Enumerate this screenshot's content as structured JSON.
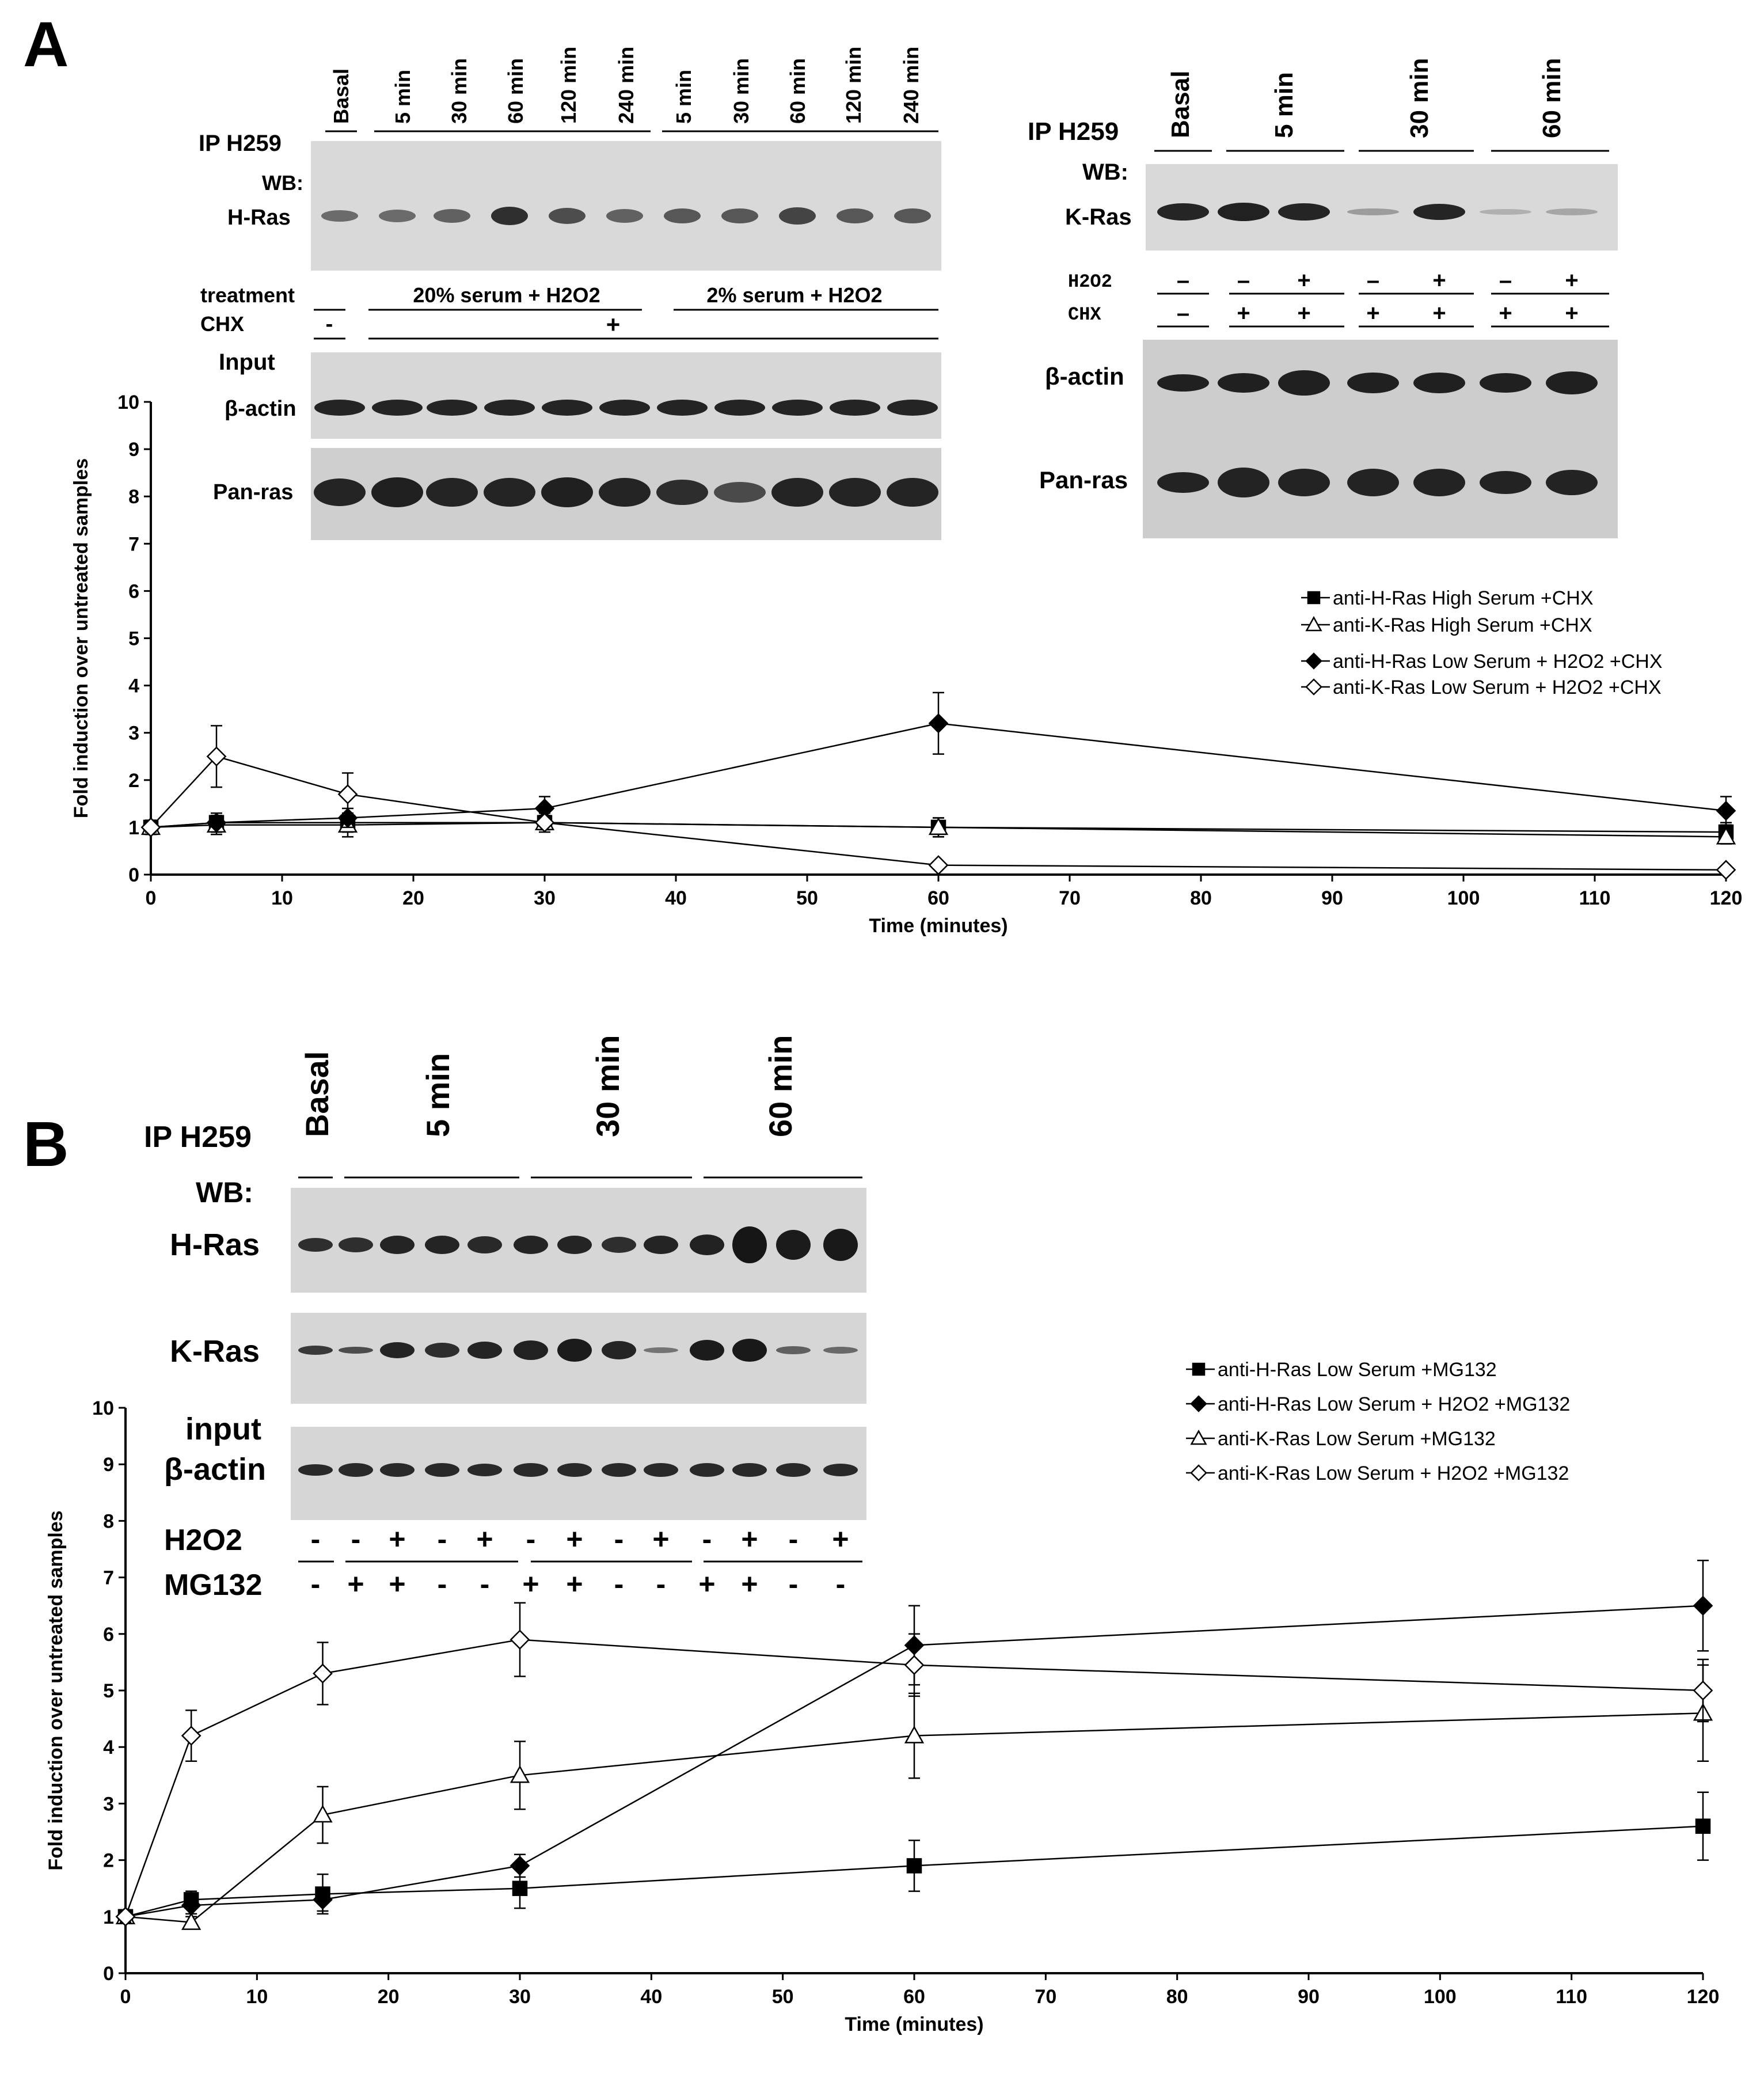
{
  "panel_a": {
    "letter": "A",
    "blot_left": {
      "ip_label": "IP H259",
      "wb_label": "WB:",
      "lanes": [
        "Basal",
        "5 min",
        "30 min",
        "60 min",
        "120 min",
        "240 min",
        "5 min",
        "30 min",
        "60 min",
        "120 min",
        "240 min"
      ],
      "bands": [
        "H-Ras"
      ],
      "treatment_label": "treatment",
      "treatment_groups": [
        "20% serum + H2O2",
        "2% serum + H2O2"
      ],
      "chx_label": "CHX",
      "chx_basal": "-",
      "chx_rest": "+",
      "input_label": "Input",
      "input_bands": [
        "β-actin",
        "Pan-ras"
      ]
    },
    "blot_right": {
      "ip_label": "IP H259",
      "wb_label": "WB:",
      "lanes": [
        "Basal",
        "5 min",
        "30 min",
        "60 min"
      ],
      "bands": [
        "K-Ras"
      ],
      "h2o2_label": "H2O2",
      "h2o2_signs": [
        "–",
        "–",
        "+",
        "–",
        "+",
        "–",
        "+"
      ],
      "chx_label": "CHX",
      "chx_signs": [
        "–",
        "+",
        "+",
        "+",
        "+",
        "+",
        "+"
      ],
      "input_bands": [
        "β-actin",
        "Pan-ras"
      ]
    }
  },
  "panel_b": {
    "letter": "B",
    "blot": {
      "ip_label": "IP H259",
      "wb_label": "WB:",
      "lanes": [
        "Basal",
        "5 min",
        "30 min",
        "60 min"
      ],
      "bands": [
        "H-Ras",
        "K-Ras"
      ],
      "input_label": "input",
      "input_bands": [
        "β-actin"
      ],
      "h2o2_label": "H2O2",
      "h2o2_signs": [
        "-",
        "-",
        "+",
        "-",
        "+",
        "-",
        "+",
        "-",
        "+",
        "-",
        "+",
        "-",
        "+"
      ],
      "mg132_label": "MG132",
      "mg132_signs": [
        "-",
        "+",
        "+",
        "-",
        "-",
        "+",
        "+",
        "-",
        "-",
        "+",
        "+",
        "-",
        "-"
      ]
    }
  },
  "chart_data": [
    {
      "type": "line",
      "panel": "A",
      "xlabel": "Time (minutes)",
      "ylabel": "Fold induction over untreated samples",
      "xlim": [
        0,
        120
      ],
      "ylim": [
        0,
        10
      ],
      "xticks": [
        0,
        10,
        20,
        30,
        40,
        50,
        60,
        70,
        80,
        90,
        100,
        110,
        120
      ],
      "yticks": [
        0,
        1,
        2,
        3,
        4,
        5,
        6,
        7,
        8,
        9,
        10
      ],
      "series": [
        {
          "name": "anti-H-Ras High Serum +CHX",
          "marker": "square-filled",
          "x": [
            0,
            5,
            15,
            30,
            60,
            120
          ],
          "y": [
            1.0,
            1.1,
            1.1,
            1.1,
            1.0,
            0.9
          ],
          "err": [
            0.15,
            0.2,
            0.2,
            0.15,
            0.2,
            0.2
          ]
        },
        {
          "name": "anti-K-Ras High Serum +CHX",
          "marker": "triangle-open",
          "x": [
            0,
            5,
            15,
            30,
            60,
            120
          ],
          "y": [
            1.0,
            1.05,
            1.05,
            1.1,
            1.0,
            0.8
          ],
          "err": [
            0.15,
            0.2,
            0.25,
            0.15,
            0.2,
            0.15
          ]
        },
        {
          "name": "anti-H-Ras Low Serum + H2O2 +CHX",
          "marker": "diamond-filled",
          "x": [
            0,
            5,
            15,
            30,
            60,
            120
          ],
          "y": [
            1.0,
            1.1,
            1.2,
            1.4,
            3.2,
            1.35
          ],
          "err": [
            0.1,
            0.2,
            0.2,
            0.25,
            0.65,
            0.3
          ]
        },
        {
          "name": "anti-K-Ras Low Serum + H2O2 +CHX",
          "marker": "diamond-open",
          "x": [
            0,
            5,
            15,
            30,
            60,
            120
          ],
          "y": [
            1.0,
            2.5,
            1.7,
            1.1,
            0.2,
            0.1
          ],
          "err": [
            0.1,
            0.65,
            0.45,
            0.2,
            0.05,
            0.05
          ]
        }
      ]
    },
    {
      "type": "line",
      "panel": "B",
      "xlabel": "Time (minutes)",
      "ylabel": "Fold induction over untreated samples",
      "xlim": [
        0,
        120
      ],
      "ylim": [
        0,
        10
      ],
      "xticks": [
        0,
        10,
        20,
        30,
        40,
        50,
        60,
        70,
        80,
        90,
        100,
        110,
        120
      ],
      "yticks": [
        0,
        1,
        2,
        3,
        4,
        5,
        6,
        7,
        8,
        9,
        10
      ],
      "series": [
        {
          "name": "anti-H-Ras Low Serum +MG132",
          "marker": "square-filled",
          "x": [
            0,
            5,
            15,
            30,
            60,
            120
          ],
          "y": [
            1.0,
            1.3,
            1.4,
            1.5,
            1.9,
            2.6
          ],
          "err": [
            0.1,
            0.15,
            0.35,
            0.35,
            0.45,
            0.6
          ]
        },
        {
          "name": "anti-H-Ras Low Serum + H2O2 +MG132",
          "marker": "diamond-filled",
          "x": [
            0,
            5,
            15,
            30,
            60,
            120
          ],
          "y": [
            1.0,
            1.2,
            1.3,
            1.9,
            5.8,
            6.5
          ],
          "err": [
            0.1,
            0.15,
            0.2,
            0.2,
            0.7,
            0.8
          ]
        },
        {
          "name": "anti-K-Ras Low Serum +MG132",
          "marker": "triangle-open",
          "x": [
            0,
            5,
            15,
            30,
            60,
            120
          ],
          "y": [
            1.0,
            0.9,
            2.8,
            3.5,
            4.2,
            4.6
          ],
          "err": [
            0.1,
            0.1,
            0.5,
            0.6,
            0.75,
            0.85
          ]
        },
        {
          "name": "anti-K-Ras Low Serum + H2O2 +MG132",
          "marker": "diamond-open",
          "x": [
            0,
            5,
            15,
            30,
            60,
            120
          ],
          "y": [
            1.0,
            4.2,
            5.3,
            5.9,
            5.45,
            5.0
          ],
          "err": [
            0.1,
            0.45,
            0.55,
            0.65,
            0.55,
            0.55
          ]
        }
      ]
    }
  ]
}
